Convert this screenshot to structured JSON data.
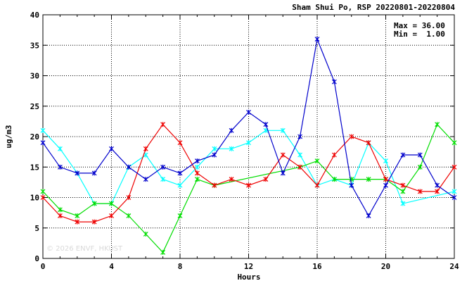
{
  "chart_data": {
    "type": "line",
    "title": "Sham Shui Po, RSP 20220801-20220804",
    "xlabel": "Hours",
    "ylabel": "ug/m3",
    "xlim": [
      0,
      24
    ],
    "ylim": [
      0,
      40
    ],
    "xticks": [
      0,
      4,
      8,
      12,
      16,
      20,
      24
    ],
    "yticks": [
      0,
      5,
      10,
      15,
      20,
      25,
      30,
      35,
      40
    ],
    "grid": true,
    "stats": {
      "max": "Max = 36.00",
      "min": "Min =  1.00"
    },
    "watermark": "© 2026  ENVF, HKUST",
    "x": [
      0,
      1,
      2,
      3,
      4,
      5,
      6,
      7,
      8,
      9,
      10,
      11,
      12,
      13,
      14,
      15,
      16,
      17,
      18,
      19,
      20,
      21,
      22,
      23,
      24
    ],
    "series": [
      {
        "color": "#00ffff",
        "values": [
          21,
          18,
          14,
          9,
          9,
          15,
          17,
          13,
          12,
          15,
          18,
          18,
          19,
          21,
          21,
          17,
          12,
          13,
          12,
          19,
          16,
          9,
          null,
          null,
          11
        ]
      },
      {
        "color": "#00dd00",
        "values": [
          11,
          8,
          7,
          9,
          9,
          7,
          4,
          1,
          7,
          13,
          12,
          null,
          null,
          null,
          null,
          15,
          16,
          13,
          13,
          13,
          13,
          11,
          15,
          22,
          19
        ]
      },
      {
        "color": "#ee0000",
        "values": [
          10,
          7,
          6,
          6,
          7,
          10,
          18,
          22,
          19,
          14,
          12,
          13,
          12,
          13,
          17,
          15,
          12,
          17,
          20,
          19,
          13,
          12,
          11,
          11,
          15
        ]
      },
      {
        "color": "#0000cc",
        "values": [
          19,
          15,
          14,
          14,
          18,
          15,
          13,
          15,
          14,
          16,
          17,
          21,
          24,
          22,
          14,
          20,
          36,
          29,
          12,
          7,
          12,
          17,
          17,
          12,
          10
        ]
      }
    ]
  }
}
